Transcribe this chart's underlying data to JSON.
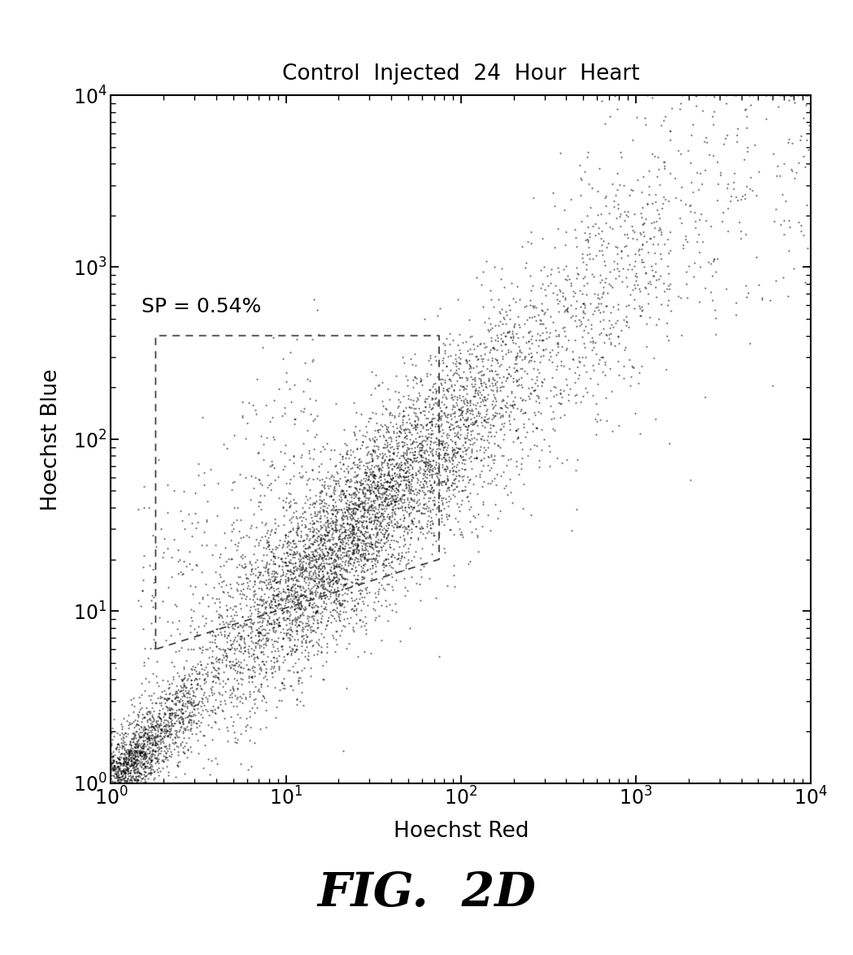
{
  "title": "Control  Injected  24  Hour  Heart",
  "xlabel": "Hoechst Red",
  "ylabel": "Hoechst Blue",
  "sp_label": "SP = 0.54%",
  "xlim": [
    1,
    10000
  ],
  "ylim": [
    1,
    10000
  ],
  "fig_label": "FIG.  2D",
  "background_color": "#ffffff",
  "scatter_color": "#000000",
  "gate_color": "#444444",
  "n_points": 8000,
  "seed": 42,
  "gate_x": [
    1.8,
    1.8,
    75.0,
    75.0,
    1.8
  ],
  "gate_y": [
    6.0,
    400.0,
    400.0,
    20.0,
    6.0
  ]
}
